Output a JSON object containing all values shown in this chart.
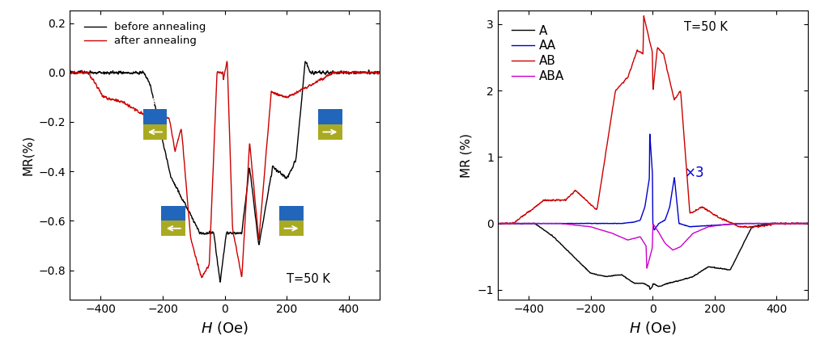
{
  "fig_width": 10.13,
  "fig_height": 4.42,
  "dpi": 100,
  "left_xlim": [
    -500,
    500
  ],
  "left_ylim": [
    -0.92,
    0.25
  ],
  "left_yticks": [
    0.2,
    0.0,
    -0.2,
    -0.4,
    -0.6,
    -0.8
  ],
  "left_xticks": [
    -400,
    -200,
    0,
    200,
    400
  ],
  "left_ylabel": "MR(%)",
  "left_xlabel": "H (Oe)",
  "left_temp_label": "T=50 K",
  "left_legend": [
    "before annealing",
    "after annealing"
  ],
  "left_colors": [
    "#000000",
    "#cc0000"
  ],
  "right_xlim": [
    -500,
    500
  ],
  "right_ylim": [
    -1.15,
    3.2
  ],
  "right_yticks": [
    -1,
    0,
    1,
    2,
    3
  ],
  "right_xticks": [
    -400,
    -200,
    0,
    200,
    400
  ],
  "right_ylabel": "MR (%)",
  "right_xlabel": "H (Oe)",
  "right_temp_label": "T=50 K",
  "right_legend": [
    "A",
    "AA",
    "AB",
    "ABA"
  ],
  "right_colors": [
    "#000000",
    "#0000cc",
    "#cc0000",
    "#cc00cc"
  ],
  "bg_color": "#ffffff",
  "icon_blue": "#2266bb",
  "icon_yellow": "#aaaa22",
  "icon_green": "#336633"
}
